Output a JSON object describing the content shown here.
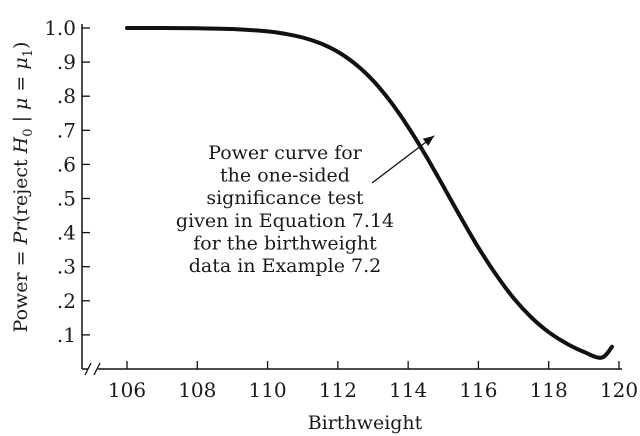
{
  "chart_data": {
    "type": "line",
    "title": "",
    "xlabel": "Birthweight",
    "ylabel_parts": {
      "prefix": "Power = ",
      "pr": "Pr",
      "open": "(reject ",
      "h": "H",
      "h_sub": "0",
      "bar": " | ",
      "mu": "μ",
      "eq": " = ",
      "mu2": "μ",
      "mu_sub": "1",
      "close": ")"
    },
    "xlim": [
      105.3,
      120
    ],
    "ylim": [
      0,
      1.0
    ],
    "x_ticks": [
      106,
      108,
      110,
      112,
      114,
      116,
      118,
      120
    ],
    "x_tick_labels": [
      "106",
      "108",
      "110",
      "112",
      "114",
      "116",
      "118",
      "120"
    ],
    "y_ticks": [
      0.1,
      0.2,
      0.3,
      0.4,
      0.5,
      0.6,
      0.7,
      0.8,
      0.9,
      1.0
    ],
    "y_tick_labels": [
      ".1",
      ".2",
      ".3",
      ".4",
      ".5",
      ".6",
      ".7",
      ".8",
      ".9",
      "1.0"
    ],
    "axis_break": true,
    "grid": false,
    "series": [
      {
        "x": [
          106,
          107,
          108,
          109,
          110,
          110.5,
          111,
          111.5,
          112,
          112.5,
          113,
          113.5,
          114,
          114.5,
          115,
          115.5,
          116,
          116.5,
          117,
          117.5,
          118,
          118.5,
          119,
          119.5,
          119.8
        ],
        "y": [
          1.0,
          1.0,
          0.999,
          0.997,
          0.99,
          0.983,
          0.972,
          0.955,
          0.93,
          0.894,
          0.846,
          0.784,
          0.71,
          0.626,
          0.536,
          0.444,
          0.356,
          0.277,
          0.208,
          0.152,
          0.108,
          0.075,
          0.05,
          0.033,
          0.065
        ]
      }
    ],
    "annotation": {
      "lines": [
        "Power curve for",
        "the one-sided",
        "significance test",
        "given in Equation 7.14",
        "for the birthweight",
        "data in Example 7.2"
      ],
      "arrow_to": [
        114.8,
        0.69
      ]
    }
  }
}
